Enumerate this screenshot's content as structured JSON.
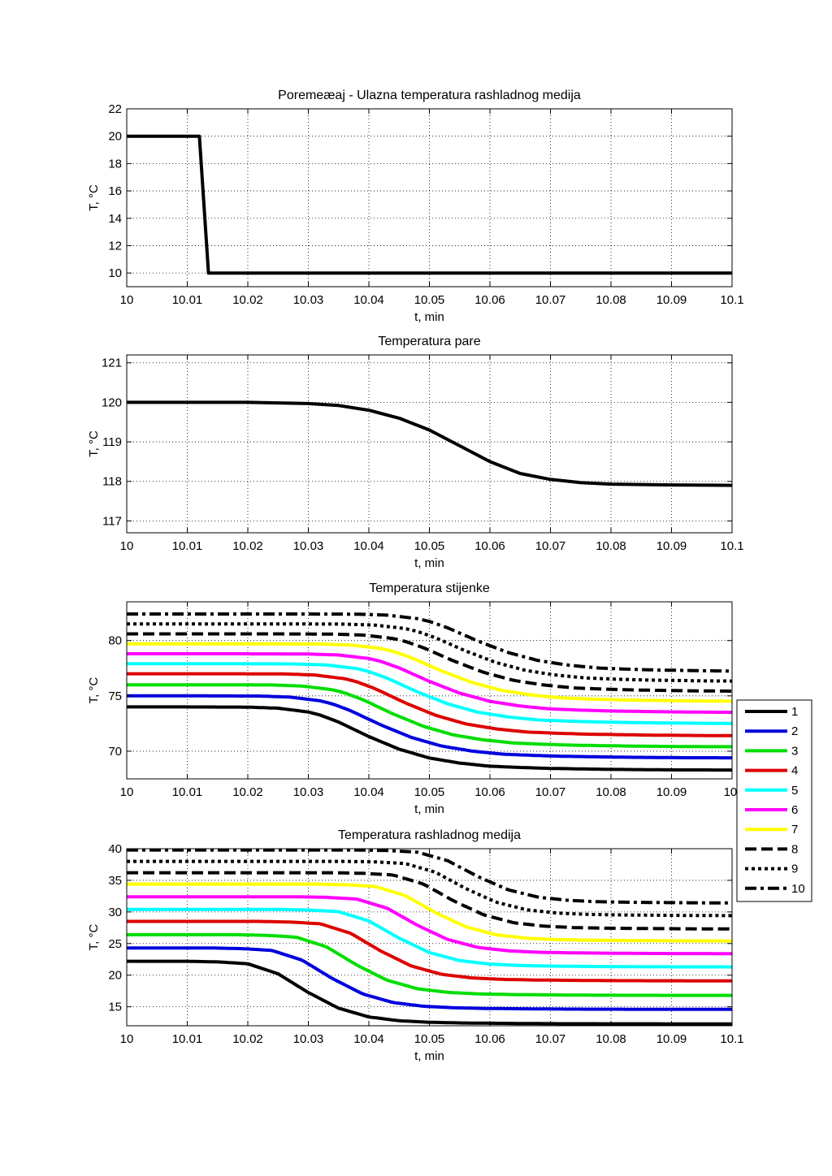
{
  "chart_data": [
    {
      "type": "line",
      "title": "Poremeæaj - Ulazna temperatura rashladnog medija",
      "xlabel": "t, min",
      "ylabel": "T, °C",
      "xlim": [
        10,
        10.1
      ],
      "ylim": [
        9,
        22
      ],
      "grid": true,
      "xticks": [
        10,
        10.01,
        10.02,
        10.03,
        10.04,
        10.05,
        10.06,
        10.07,
        10.08,
        10.09,
        10.1
      ],
      "xtick_labels": [
        "10",
        "10.01",
        "10.02",
        "10.03",
        "10.04",
        "10.05",
        "10.06",
        "10.07",
        "10.08",
        "10.09",
        "10.1"
      ],
      "yticks": [
        10,
        12,
        14,
        16,
        18,
        20,
        22
      ],
      "ytick_labels": [
        "10",
        "12",
        "14",
        "16",
        "18",
        "20",
        "22"
      ],
      "series": [
        {
          "color": "#000000",
          "style": "solid",
          "x": [
            10,
            10.012,
            10.0135,
            10.1
          ],
          "y": [
            20,
            20,
            10,
            10
          ]
        }
      ]
    },
    {
      "type": "line",
      "title": "Temperatura pare",
      "xlabel": "t, min",
      "ylabel": "T, °C",
      "xlim": [
        10,
        10.1
      ],
      "ylim": [
        116.7,
        121.2
      ],
      "grid": true,
      "xticks": [
        10,
        10.01,
        10.02,
        10.03,
        10.04,
        10.05,
        10.06,
        10.07,
        10.08,
        10.09,
        10.1
      ],
      "xtick_labels": [
        "10",
        "10.01",
        "10.02",
        "10.03",
        "10.04",
        "10.05",
        "10.06",
        "10.07",
        "10.08",
        "10.09",
        "10.1"
      ],
      "yticks": [
        117,
        118,
        119,
        120,
        121
      ],
      "ytick_labels": [
        "117",
        "118",
        "119",
        "120",
        "121"
      ],
      "series": [
        {
          "color": "#000000",
          "style": "solid",
          "x": [
            10,
            10.02,
            10.03,
            10.035,
            10.04,
            10.045,
            10.05,
            10.055,
            10.06,
            10.065,
            10.07,
            10.075,
            10.08,
            10.09,
            10.1
          ],
          "y": [
            120,
            120,
            119.97,
            119.92,
            119.8,
            119.6,
            119.3,
            118.9,
            118.5,
            118.2,
            118.05,
            117.97,
            117.93,
            117.91,
            117.9
          ]
        }
      ]
    },
    {
      "type": "line",
      "title": "Temperatura stijenke",
      "xlabel": "t, min",
      "ylabel": "T, °C",
      "xlim": [
        10,
        10.1
      ],
      "ylim": [
        67.5,
        83.5
      ],
      "grid": true,
      "xticks": [
        10,
        10.01,
        10.02,
        10.03,
        10.04,
        10.05,
        10.06,
        10.07,
        10.08,
        10.09,
        10.1
      ],
      "xtick_labels": [
        "10",
        "10.01",
        "10.02",
        "10.03",
        "10.04",
        "10.05",
        "10.06",
        "10.07",
        "10.08",
        "10.09",
        "10."
      ],
      "yticks": [
        70,
        75,
        80
      ],
      "ytick_labels": [
        "70",
        "75",
        "80"
      ],
      "shape_x": [
        10,
        10.01,
        10.02,
        10.025,
        10.03,
        10.032,
        10.035,
        10.04,
        10.045,
        10.05,
        10.055,
        10.06,
        10.065,
        10.07,
        10.08,
        10.09,
        10.1
      ],
      "shape_frac": [
        0,
        0,
        0.003,
        0.02,
        0.08,
        0.13,
        0.24,
        0.47,
        0.67,
        0.81,
        0.89,
        0.94,
        0.96,
        0.975,
        0.99,
        0.998,
        1.0
      ],
      "series": [
        {
          "name": "1",
          "color": "#000000",
          "style": "solid",
          "start": 74.0,
          "end": 68.3,
          "delay": 0
        },
        {
          "name": "2",
          "color": "#0000dd",
          "style": "solid",
          "start": 75.0,
          "end": 69.4,
          "delay": 0.002
        },
        {
          "name": "3",
          "color": "#00dd00",
          "style": "solid",
          "start": 76.0,
          "end": 70.4,
          "delay": 0.004
        },
        {
          "name": "4",
          "color": "#dd0000",
          "style": "solid",
          "start": 77.0,
          "end": 71.4,
          "delay": 0.006
        },
        {
          "name": "5",
          "color": "#00ffff",
          "style": "solid",
          "start": 77.9,
          "end": 72.5,
          "delay": 0.008
        },
        {
          "name": "6",
          "color": "#ff00ff",
          "style": "solid",
          "start": 78.8,
          "end": 73.5,
          "delay": 0.01
        },
        {
          "name": "7",
          "color": "#ffff00",
          "style": "solid",
          "start": 79.7,
          "end": 74.5,
          "delay": 0.012
        },
        {
          "name": "8",
          "color": "#000000",
          "style": "dashed",
          "start": 80.6,
          "end": 75.4,
          "delay": 0.014
        },
        {
          "name": "9",
          "color": "#000000",
          "style": "dotted",
          "start": 81.5,
          "end": 76.3,
          "delay": 0.016
        },
        {
          "name": "10",
          "color": "#000000",
          "style": "dashdot",
          "start": 82.4,
          "end": 77.2,
          "delay": 0.018
        }
      ],
      "legend": {
        "placement": "right",
        "entries": [
          "1",
          "2",
          "3",
          "4",
          "5",
          "6",
          "7",
          "8",
          "9",
          "10"
        ]
      }
    },
    {
      "type": "line",
      "title": "Temperatura rashladnog medija",
      "xlabel": "t, min",
      "ylabel": "T, °C",
      "xlim": [
        10,
        10.1
      ],
      "ylim": [
        12,
        40
      ],
      "grid": true,
      "xticks": [
        10,
        10.01,
        10.02,
        10.03,
        10.04,
        10.05,
        10.06,
        10.07,
        10.08,
        10.09,
        10.1
      ],
      "xtick_labels": [
        "10",
        "10.01",
        "10.02",
        "10.03",
        "10.04",
        "10.05",
        "10.06",
        "10.07",
        "10.08",
        "10.09",
        "10.1"
      ],
      "yticks": [
        15,
        20,
        25,
        30,
        35,
        40
      ],
      "ytick_labels": [
        "15",
        "20",
        "25",
        "30",
        "35",
        "40"
      ],
      "shape_x": [
        10,
        10.01,
        10.015,
        10.02,
        10.025,
        10.03,
        10.035,
        10.04,
        10.045,
        10.05,
        10.055,
        10.06,
        10.065,
        10.07,
        10.08,
        10.09,
        10.1
      ],
      "shape_frac": [
        0,
        0,
        0.01,
        0.04,
        0.2,
        0.5,
        0.75,
        0.89,
        0.95,
        0.975,
        0.985,
        0.99,
        0.994,
        0.997,
        0.999,
        1.0,
        1.0
      ],
      "series": [
        {
          "name": "1",
          "color": "#000000",
          "style": "solid",
          "start": 22.2,
          "end": 12.3,
          "delay": 0
        },
        {
          "name": "2",
          "color": "#0000dd",
          "style": "solid",
          "start": 24.3,
          "end": 14.6,
          "delay": 0.004
        },
        {
          "name": "3",
          "color": "#00dd00",
          "style": "solid",
          "start": 26.4,
          "end": 16.8,
          "delay": 0.008
        },
        {
          "name": "4",
          "color": "#dd0000",
          "style": "solid",
          "start": 28.5,
          "end": 19.1,
          "delay": 0.012
        },
        {
          "name": "5",
          "color": "#00ffff",
          "style": "solid",
          "start": 30.4,
          "end": 21.3,
          "delay": 0.015
        },
        {
          "name": "6",
          "color": "#ff00ff",
          "style": "solid",
          "start": 32.4,
          "end": 23.4,
          "delay": 0.018
        },
        {
          "name": "7",
          "color": "#ffff00",
          "style": "solid",
          "start": 34.4,
          "end": 25.4,
          "delay": 0.021
        },
        {
          "name": "8",
          "color": "#000000",
          "style": "dashed",
          "start": 36.2,
          "end": 27.3,
          "delay": 0.024
        },
        {
          "name": "9",
          "color": "#000000",
          "style": "dotted",
          "start": 38.0,
          "end": 29.4,
          "delay": 0.026
        },
        {
          "name": "10",
          "color": "#000000",
          "style": "dashdot",
          "start": 39.8,
          "end": 31.4,
          "delay": 0.028
        }
      ]
    }
  ]
}
